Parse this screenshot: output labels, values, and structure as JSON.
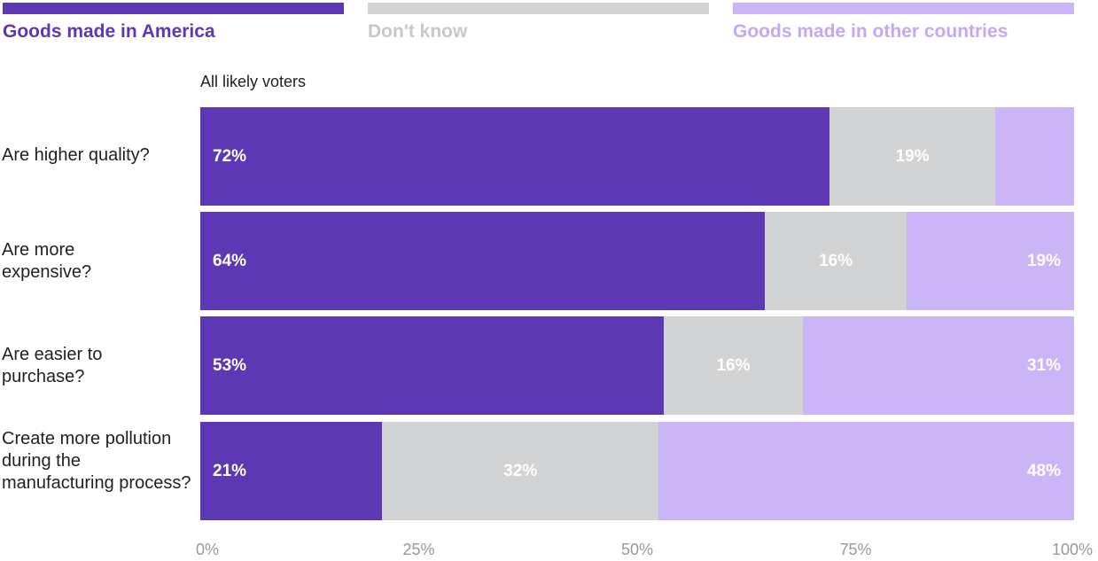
{
  "chart_data": {
    "type": "bar",
    "orientation": "horizontal",
    "stacked": true,
    "subtitle": "All likely voters",
    "categories": [
      "Are higher quality?",
      "Are more expensive?",
      "Are easier to purchase?",
      "Create more pollution during the manufacturing process?"
    ],
    "series": [
      {
        "name": "Goods made in America",
        "color": "#5c38b5",
        "values": [
          72,
          64,
          53,
          21
        ],
        "labels": [
          "72%",
          "64%",
          "53%",
          "21%"
        ]
      },
      {
        "name": "Don't know",
        "color": "#d2d3d5",
        "values": [
          19,
          16,
          16,
          32
        ],
        "labels": [
          "19%",
          "16%",
          "16%",
          "32%"
        ]
      },
      {
        "name": "Goods made in other countries",
        "color": "#cab5f6",
        "values": [
          9,
          19,
          31,
          48
        ],
        "labels": [
          "",
          "19%",
          "31%",
          "48%"
        ]
      }
    ],
    "xlim": [
      0,
      100
    ],
    "ticks": [
      0,
      25,
      50,
      75,
      100
    ],
    "tick_labels": [
      "0%",
      "25%",
      "50%",
      "75%",
      "100%"
    ],
    "legend_position": "top",
    "grid": false
  },
  "colors": {
    "legend_text": [
      "#5c38b5",
      "#c7c8ca",
      "#c2a9f7"
    ]
  }
}
